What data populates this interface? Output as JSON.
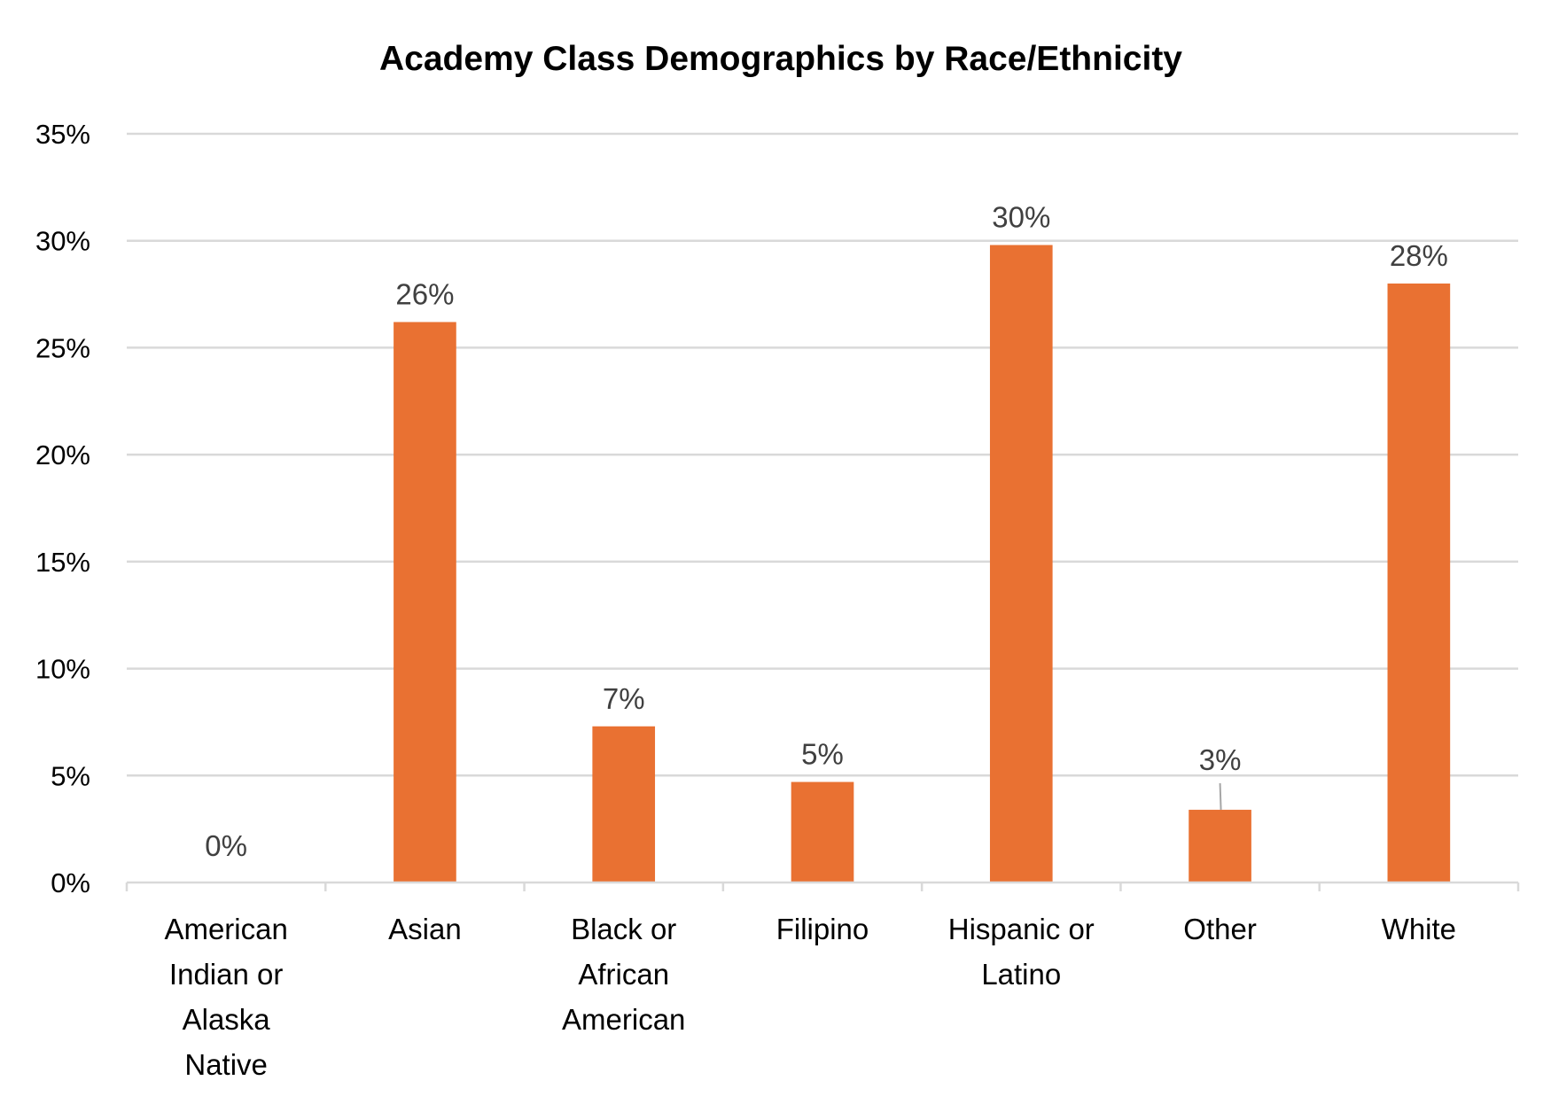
{
  "chart_data": {
    "type": "bar",
    "title": "Academy Class Demographics by Race/Ethnicity",
    "xlabel": "",
    "ylabel": "",
    "categories": [
      [
        "American",
        "Indian or",
        "Alaska",
        "Native"
      ],
      [
        "Asian"
      ],
      [
        "Black or",
        "African",
        "American"
      ],
      [
        "Filipino"
      ],
      [
        "Hispanic or",
        "Latino"
      ],
      [
        "Other"
      ],
      [
        "White"
      ]
    ],
    "values": [
      0,
      26.2,
      7.3,
      4.7,
      29.8,
      3.4,
      28.0
    ],
    "data_labels": [
      "0%",
      "26%",
      "7%",
      "5%",
      "30%",
      "3%",
      "28%"
    ],
    "ylim": [
      0,
      35
    ],
    "yticks": [
      "0%",
      "5%",
      "10%",
      "15%",
      "20%",
      "25%",
      "30%",
      "35%"
    ],
    "grid": true,
    "legend": "none",
    "bar_color": "#E97132",
    "grid_color": "#D9D9D9"
  }
}
